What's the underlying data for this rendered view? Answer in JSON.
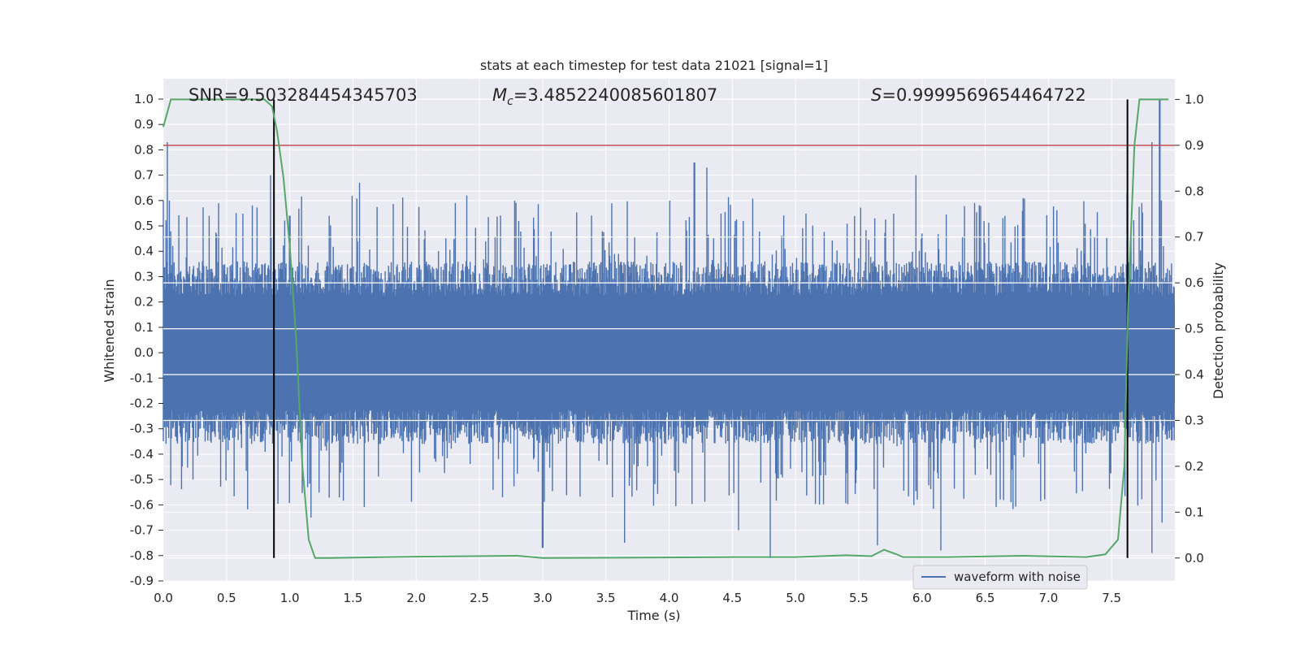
{
  "chart_data": {
    "type": "line",
    "title": "stats at each timestep for test data 21021 [signal=1]",
    "xlabel": "Time (s)",
    "ylabel": "Whitened strain",
    "ylabel_right": "Detection probability",
    "xlim": [
      0,
      8
    ],
    "ylim": [
      -0.9,
      1.08
    ],
    "ylim_right": [
      -0.05,
      1.045
    ],
    "xticks": [
      "0.0",
      "0.5",
      "1.0",
      "1.5",
      "2.0",
      "2.5",
      "3.0",
      "3.5",
      "4.0",
      "4.5",
      "5.0",
      "5.5",
      "6.0",
      "6.5",
      "7.0",
      "7.5"
    ],
    "yticks": [
      "1.0",
      "0.9",
      "0.8",
      "0.7",
      "0.6",
      "0.5",
      "0.4",
      "0.3",
      "0.2",
      "0.1",
      "0.0",
      "-0.1",
      "-0.2",
      "-0.3",
      "-0.4",
      "-0.5",
      "-0.6",
      "-0.7",
      "-0.8",
      "-0.9"
    ],
    "yticks_right": [
      "1.0",
      "0.9",
      "0.8",
      "0.7",
      "0.6",
      "0.5",
      "0.4",
      "0.3",
      "0.2",
      "0.1",
      "0.0"
    ],
    "grid": true,
    "legend_position": "lower-right",
    "annotations": {
      "snr": "SNR=9.503284454345703",
      "mc_symbol": "M",
      "mc_sub": "c",
      "mc_value": "=3.4852240085601807",
      "s_symbol": "S",
      "s_value": "=0.9999569654464722"
    },
    "threshold_right": 0.9,
    "vertical_markers": [
      0.875,
      7.625
    ],
    "colors": {
      "waveform": "#4c72b0",
      "probability": "#55a868",
      "threshold": "#c44e52",
      "markers": "#000000",
      "background": "#eaeaf2",
      "grid": "#ffffff"
    },
    "series": [
      {
        "name": "waveform with noise",
        "kind": "noise-band",
        "t_start": 0,
        "t_end": 8,
        "envelope_upper": 0.3,
        "envelope_lower": -0.3,
        "peaks": [
          {
            "x": 0.03,
            "y": 0.83
          },
          {
            "x": 0.05,
            "y": 0.6
          },
          {
            "x": 0.85,
            "y": 0.7
          },
          {
            "x": 1.0,
            "y": 0.54
          },
          {
            "x": 1.55,
            "y": 0.67
          },
          {
            "x": 2.4,
            "y": 0.62
          },
          {
            "x": 4.2,
            "y": 0.75
          },
          {
            "x": 4.3,
            "y": 0.73
          },
          {
            "x": 5.95,
            "y": 0.7
          },
          {
            "x": 7.62,
            "y": 0.63
          },
          {
            "x": 7.82,
            "y": 0.83
          },
          {
            "x": 7.88,
            "y": 1.0
          }
        ],
        "troughs": [
          {
            "x": 1.17,
            "y": -0.65
          },
          {
            "x": 3.0,
            "y": -0.77
          },
          {
            "x": 3.65,
            "y": -0.75
          },
          {
            "x": 4.8,
            "y": -0.81
          },
          {
            "x": 4.55,
            "y": -0.7
          },
          {
            "x": 5.65,
            "y": -0.76
          },
          {
            "x": 6.15,
            "y": -0.78
          },
          {
            "x": 7.82,
            "y": -0.79
          },
          {
            "x": 7.9,
            "y": -0.67
          }
        ]
      },
      {
        "name": "detection probability",
        "axis": "right",
        "points": [
          [
            0.0,
            0.94
          ],
          [
            0.06,
            1.0
          ],
          [
            0.5,
            1.0
          ],
          [
            0.8,
            1.0
          ],
          [
            0.86,
            0.985
          ],
          [
            0.9,
            0.93
          ],
          [
            0.95,
            0.83
          ],
          [
            1.0,
            0.68
          ],
          [
            1.05,
            0.48
          ],
          [
            1.1,
            0.2
          ],
          [
            1.15,
            0.04
          ],
          [
            1.2,
            0.0
          ],
          [
            1.3,
            0.0
          ],
          [
            2.0,
            0.003
          ],
          [
            2.8,
            0.005
          ],
          [
            3.0,
            0.0
          ],
          [
            4.5,
            0.002
          ],
          [
            5.0,
            0.002
          ],
          [
            5.4,
            0.006
          ],
          [
            5.6,
            0.004
          ],
          [
            5.7,
            0.018
          ],
          [
            5.8,
            0.008
          ],
          [
            5.85,
            0.002
          ],
          [
            6.2,
            0.002
          ],
          [
            6.8,
            0.005
          ],
          [
            7.3,
            0.002
          ],
          [
            7.45,
            0.008
          ],
          [
            7.55,
            0.04
          ],
          [
            7.6,
            0.2
          ],
          [
            7.63,
            0.55
          ],
          [
            7.68,
            0.9
          ],
          [
            7.72,
            1.0
          ],
          [
            7.95,
            1.0
          ]
        ]
      }
    ]
  }
}
